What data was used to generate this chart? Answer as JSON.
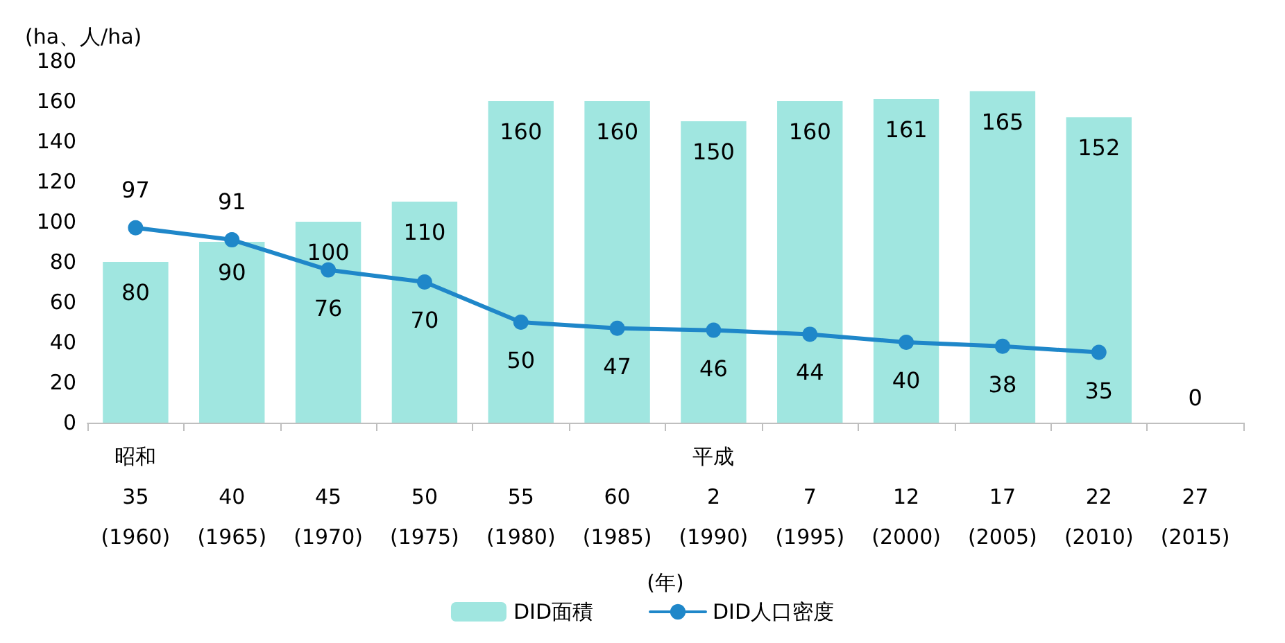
{
  "chart_data": {
    "type": "bar",
    "ylabel": "(ha、人/ha)",
    "xlabel": "(年)",
    "categories": [
      "昭和\n35\n(1960)",
      "40\n(1965)",
      "45\n(1970)",
      "50\n(1975)",
      "55\n(1980)",
      "60\n(1985)",
      "平成\n2\n(1990)",
      "7\n(1995)",
      "12\n(2000)",
      "17\n(2005)",
      "22\n(2010)",
      "27\n(2015)"
    ],
    "series": [
      {
        "name": "DID面積",
        "color": "#a0e6e0",
        "values": [
          80,
          90,
          100,
          110,
          160,
          160,
          150,
          160,
          161,
          165,
          152,
          0
        ]
      },
      {
        "name": "DID人口密度",
        "type": "line",
        "color": "#1f87c9",
        "marker": "circle",
        "line_style": "solid",
        "values": [
          97,
          91,
          76,
          70,
          50,
          47,
          46,
          44,
          40,
          38,
          35,
          null
        ]
      }
    ],
    "ylim": [
      0,
      180
    ],
    "yticks": [
      0,
      20,
      40,
      60,
      80,
      100,
      120,
      140,
      160,
      180
    ],
    "grid": false,
    "legend": "bottom",
    "data_labels": true
  }
}
